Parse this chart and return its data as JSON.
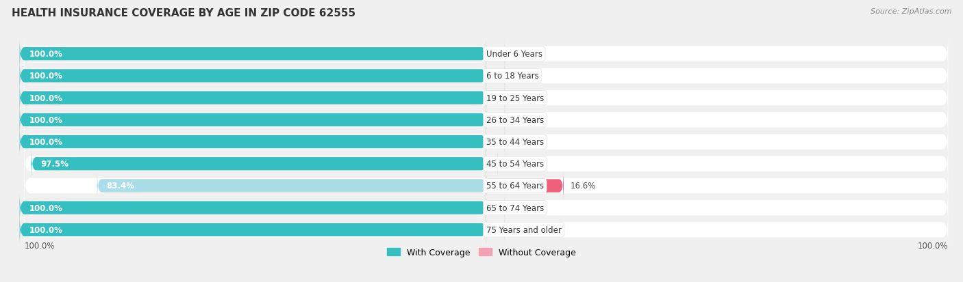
{
  "title": "HEALTH INSURANCE COVERAGE BY AGE IN ZIP CODE 62555",
  "source": "Source: ZipAtlas.com",
  "categories": [
    "Under 6 Years",
    "6 to 18 Years",
    "19 to 25 Years",
    "26 to 34 Years",
    "35 to 44 Years",
    "45 to 54 Years",
    "55 to 64 Years",
    "65 to 74 Years",
    "75 Years and older"
  ],
  "with_coverage": [
    100.0,
    100.0,
    100.0,
    100.0,
    100.0,
    97.5,
    83.4,
    100.0,
    100.0
  ],
  "without_coverage": [
    0.0,
    0.0,
    0.0,
    0.0,
    0.0,
    2.5,
    16.6,
    0.0,
    0.0
  ],
  "color_with": "#35bfc0",
  "color_without_small": "#f4a0b5",
  "color_without_large": "#f0607a",
  "color_55_64_with": "#aadde8",
  "bg_color": "#f0f0f0",
  "row_bg": "#ffffff",
  "bar_bg_right": "#f0f0f0",
  "title_fontsize": 11,
  "source_fontsize": 8,
  "label_fontsize": 8.5,
  "tick_fontsize": 8.5,
  "legend_fontsize": 9,
  "cat_label_fontsize": 8.5
}
